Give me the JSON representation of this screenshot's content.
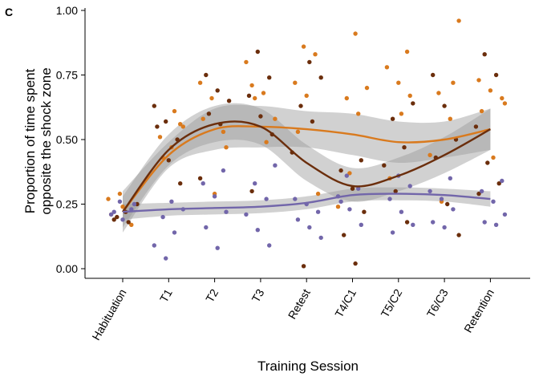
{
  "panel_label": "C",
  "colors": {
    "series_light_orange": "#d97a1e",
    "series_dark_brown": "#6b2e0c",
    "series_purple": "#7266aa",
    "ci_band": "#9a9a9a",
    "axis": "#000000"
  },
  "chart_data": {
    "type": "scatter",
    "xlabel": "Training Session",
    "ylabel_lines": [
      "Proportion of time spent",
      "opposite the shock zone"
    ],
    "categories": [
      "Habituation",
      "T1",
      "T2",
      "T3",
      "Retest",
      "T4/C1",
      "T5/C2",
      "T6/C3",
      "Retention"
    ],
    "ylim": [
      0,
      1
    ],
    "yticks": [
      0.0,
      0.25,
      0.5,
      0.75,
      1.0
    ],
    "ytick_labels": [
      "0.00",
      "0.25",
      "0.50",
      "0.75",
      "1.00"
    ],
    "grid": false,
    "legend": "none",
    "series": [
      {
        "key": "orange",
        "color": "#d97a1e",
        "smooth": [
          0.22,
          0.44,
          0.54,
          0.55,
          0.54,
          0.52,
          0.49,
          0.5,
          0.54
        ],
        "ci_lower": [
          0.14,
          0.39,
          0.46,
          0.47,
          0.47,
          0.44,
          0.41,
          0.43,
          0.46
        ],
        "ci_upper": [
          0.3,
          0.49,
          0.62,
          0.63,
          0.61,
          0.6,
          0.57,
          0.57,
          0.62
        ],
        "points": [
          [
            0,
            0.27
          ],
          [
            0,
            0.29
          ],
          [
            0,
            0.17
          ],
          [
            0,
            0.21
          ],
          [
            0,
            0.24
          ],
          [
            1,
            0.56
          ],
          [
            1,
            0.51
          ],
          [
            1,
            0.47
          ],
          [
            1,
            0.55
          ],
          [
            1,
            0.43
          ],
          [
            1,
            0.61
          ],
          [
            2,
            0.72
          ],
          [
            2,
            0.66
          ],
          [
            2,
            0.53
          ],
          [
            2,
            0.58
          ],
          [
            2,
            0.29
          ],
          [
            2,
            0.47
          ],
          [
            3,
            0.71
          ],
          [
            3,
            0.68
          ],
          [
            3,
            0.58
          ],
          [
            3,
            0.66
          ],
          [
            3,
            0.49
          ],
          [
            3,
            0.8
          ],
          [
            4,
            0.86
          ],
          [
            4,
            0.83
          ],
          [
            4,
            0.72
          ],
          [
            4,
            0.67
          ],
          [
            4,
            0.29
          ],
          [
            4,
            0.53
          ],
          [
            5,
            0.91
          ],
          [
            5,
            0.7
          ],
          [
            5,
            0.66
          ],
          [
            5,
            0.6
          ],
          [
            5,
            0.24
          ],
          [
            5,
            0.37
          ],
          [
            6,
            0.84
          ],
          [
            6,
            0.78
          ],
          [
            6,
            0.72
          ],
          [
            6,
            0.67
          ],
          [
            6,
            0.35
          ],
          [
            6,
            0.6
          ],
          [
            7,
            0.96
          ],
          [
            7,
            0.68
          ],
          [
            7,
            0.58
          ],
          [
            7,
            0.44
          ],
          [
            7,
            0.26
          ],
          [
            7,
            0.72
          ],
          [
            8,
            0.73
          ],
          [
            8,
            0.69
          ],
          [
            8,
            0.66
          ],
          [
            8,
            0.61
          ],
          [
            8,
            0.43
          ],
          [
            8,
            0.64
          ]
        ]
      },
      {
        "key": "brown",
        "color": "#6b2e0c",
        "smooth": [
          0.22,
          0.46,
          0.56,
          0.55,
          0.41,
          0.32,
          0.36,
          0.44,
          0.54
        ],
        "ci_lower": [
          0.16,
          0.4,
          0.49,
          0.48,
          0.34,
          0.26,
          0.3,
          0.37,
          0.46
        ],
        "ci_upper": [
          0.28,
          0.52,
          0.63,
          0.62,
          0.48,
          0.39,
          0.43,
          0.51,
          0.62
        ],
        "points": [
          [
            0,
            0.19
          ],
          [
            0,
            0.22
          ],
          [
            0,
            0.25
          ],
          [
            0,
            0.2
          ],
          [
            0,
            0.18
          ],
          [
            1,
            0.63
          ],
          [
            1,
            0.57
          ],
          [
            1,
            0.5
          ],
          [
            1,
            0.55
          ],
          [
            1,
            0.42
          ],
          [
            1,
            0.33
          ],
          [
            2,
            0.75
          ],
          [
            2,
            0.69
          ],
          [
            2,
            0.65
          ],
          [
            2,
            0.6
          ],
          [
            2,
            0.56
          ],
          [
            2,
            0.35
          ],
          [
            3,
            0.84
          ],
          [
            3,
            0.74
          ],
          [
            3,
            0.67
          ],
          [
            3,
            0.59
          ],
          [
            3,
            0.52
          ],
          [
            3,
            0.3
          ],
          [
            4,
            0.8
          ],
          [
            4,
            0.74
          ],
          [
            4,
            0.63
          ],
          [
            4,
            0.57
          ],
          [
            4,
            0.45
          ],
          [
            4,
            0.01
          ],
          [
            5,
            0.42
          ],
          [
            5,
            0.38
          ],
          [
            5,
            0.31
          ],
          [
            5,
            0.22
          ],
          [
            5,
            0.13
          ],
          [
            5,
            0.02
          ],
          [
            6,
            0.64
          ],
          [
            6,
            0.58
          ],
          [
            6,
            0.47
          ],
          [
            6,
            0.4
          ],
          [
            6,
            0.3
          ],
          [
            6,
            0.18
          ],
          [
            7,
            0.75
          ],
          [
            7,
            0.63
          ],
          [
            7,
            0.5
          ],
          [
            7,
            0.43
          ],
          [
            7,
            0.25
          ],
          [
            7,
            0.13
          ],
          [
            8,
            0.83
          ],
          [
            8,
            0.75
          ],
          [
            8,
            0.55
          ],
          [
            8,
            0.41
          ],
          [
            8,
            0.33
          ],
          [
            8,
            0.29
          ]
        ]
      },
      {
        "key": "purple",
        "color": "#7266aa",
        "smooth": [
          0.22,
          0.23,
          0.235,
          0.24,
          0.255,
          0.285,
          0.29,
          0.285,
          0.27
        ],
        "ci_lower": [
          0.19,
          0.205,
          0.21,
          0.215,
          0.23,
          0.26,
          0.265,
          0.26,
          0.24
        ],
        "ci_upper": [
          0.25,
          0.255,
          0.26,
          0.265,
          0.28,
          0.31,
          0.315,
          0.31,
          0.3
        ],
        "points": [
          [
            0,
            0.26
          ],
          [
            0,
            0.23
          ],
          [
            0,
            0.21
          ],
          [
            0,
            0.19
          ],
          [
            0,
            0.25
          ],
          [
            0,
            0.22
          ],
          [
            1,
            0.26
          ],
          [
            1,
            0.23
          ],
          [
            1,
            0.2
          ],
          [
            1,
            0.14
          ],
          [
            1,
            0.09
          ],
          [
            1,
            0.04
          ],
          [
            2,
            0.38
          ],
          [
            2,
            0.33
          ],
          [
            2,
            0.28
          ],
          [
            2,
            0.22
          ],
          [
            2,
            0.16
          ],
          [
            2,
            0.08
          ],
          [
            3,
            0.4
          ],
          [
            3,
            0.33
          ],
          [
            3,
            0.27
          ],
          [
            3,
            0.21
          ],
          [
            3,
            0.15
          ],
          [
            3,
            0.09
          ],
          [
            4,
            0.27
          ],
          [
            4,
            0.25
          ],
          [
            4,
            0.22
          ],
          [
            4,
            0.19
          ],
          [
            4,
            0.16
          ],
          [
            4,
            0.12
          ],
          [
            5,
            0.36
          ],
          [
            5,
            0.31
          ],
          [
            5,
            0.28
          ],
          [
            5,
            0.23
          ],
          [
            5,
            0.17
          ],
          [
            5,
            0.26
          ],
          [
            6,
            0.36
          ],
          [
            6,
            0.32
          ],
          [
            6,
            0.27
          ],
          [
            6,
            0.22
          ],
          [
            6,
            0.17
          ],
          [
            6,
            0.14
          ],
          [
            7,
            0.35
          ],
          [
            7,
            0.3
          ],
          [
            7,
            0.27
          ],
          [
            7,
            0.23
          ],
          [
            7,
            0.18
          ],
          [
            7,
            0.16
          ],
          [
            8,
            0.34
          ],
          [
            8,
            0.3
          ],
          [
            8,
            0.26
          ],
          [
            8,
            0.21
          ],
          [
            8,
            0.18
          ],
          [
            8,
            0.17
          ]
        ]
      }
    ]
  }
}
